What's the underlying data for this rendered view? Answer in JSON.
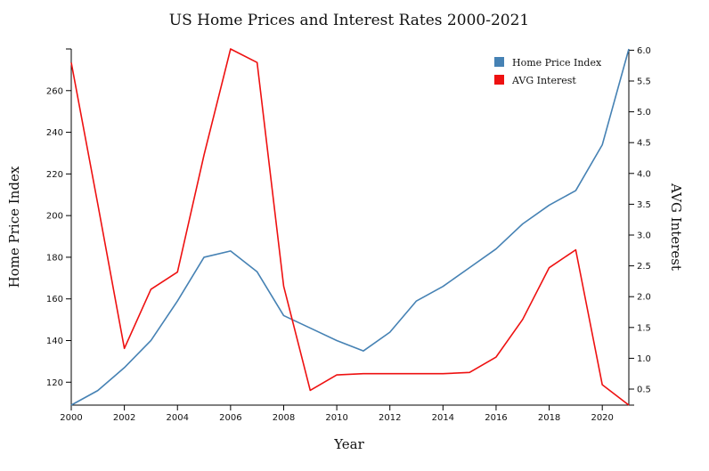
{
  "chart_data": {
    "type": "line",
    "title": "US Home Prices and Interest Rates 2000-2021",
    "xlabel": "Year",
    "ylabel_left": "Home Price Index",
    "ylabel_right": "AVG Interest",
    "x": [
      2000,
      2001,
      2002,
      2003,
      2004,
      2005,
      2006,
      2007,
      2008,
      2009,
      2010,
      2011,
      2012,
      2013,
      2014,
      2015,
      2016,
      2017,
      2018,
      2019,
      2020,
      2021
    ],
    "x_ticks": [
      "2000",
      "2002",
      "2004",
      "2006",
      "2008",
      "2010",
      "2012",
      "2014",
      "2016",
      "2018",
      "2020"
    ],
    "xlim": [
      2000,
      2021
    ],
    "ylim_left": [
      109,
      280
    ],
    "y_ticks_left": [
      "120",
      "140",
      "160",
      "180",
      "200",
      "220",
      "240",
      "260"
    ],
    "ylim_right": [
      0.24,
      6.02
    ],
    "y_ticks_right": [
      "0.5",
      "1.0",
      "1.5",
      "2.0",
      "2.5",
      "3.0",
      "3.5",
      "4.0",
      "4.5",
      "5.0",
      "5.5",
      "6.0"
    ],
    "legend_position": "top-right",
    "series": [
      {
        "name": "Home Price Index",
        "axis": "left",
        "color": "#4682b4",
        "values": [
          109,
          116,
          127,
          140,
          159,
          180,
          183,
          173,
          152,
          146,
          140,
          135,
          144,
          159,
          166,
          175,
          184,
          196,
          205,
          212,
          234,
          280
        ]
      },
      {
        "name": "AVG Interest",
        "axis": "right",
        "color": "#ee1111",
        "values": [
          5.8,
          3.5,
          1.16,
          2.12,
          2.4,
          4.3,
          6.02,
          5.8,
          2.17,
          0.48,
          0.73,
          0.75,
          0.75,
          0.75,
          0.75,
          0.77,
          1.02,
          1.63,
          2.47,
          2.76,
          0.57,
          0.24
        ]
      }
    ]
  }
}
